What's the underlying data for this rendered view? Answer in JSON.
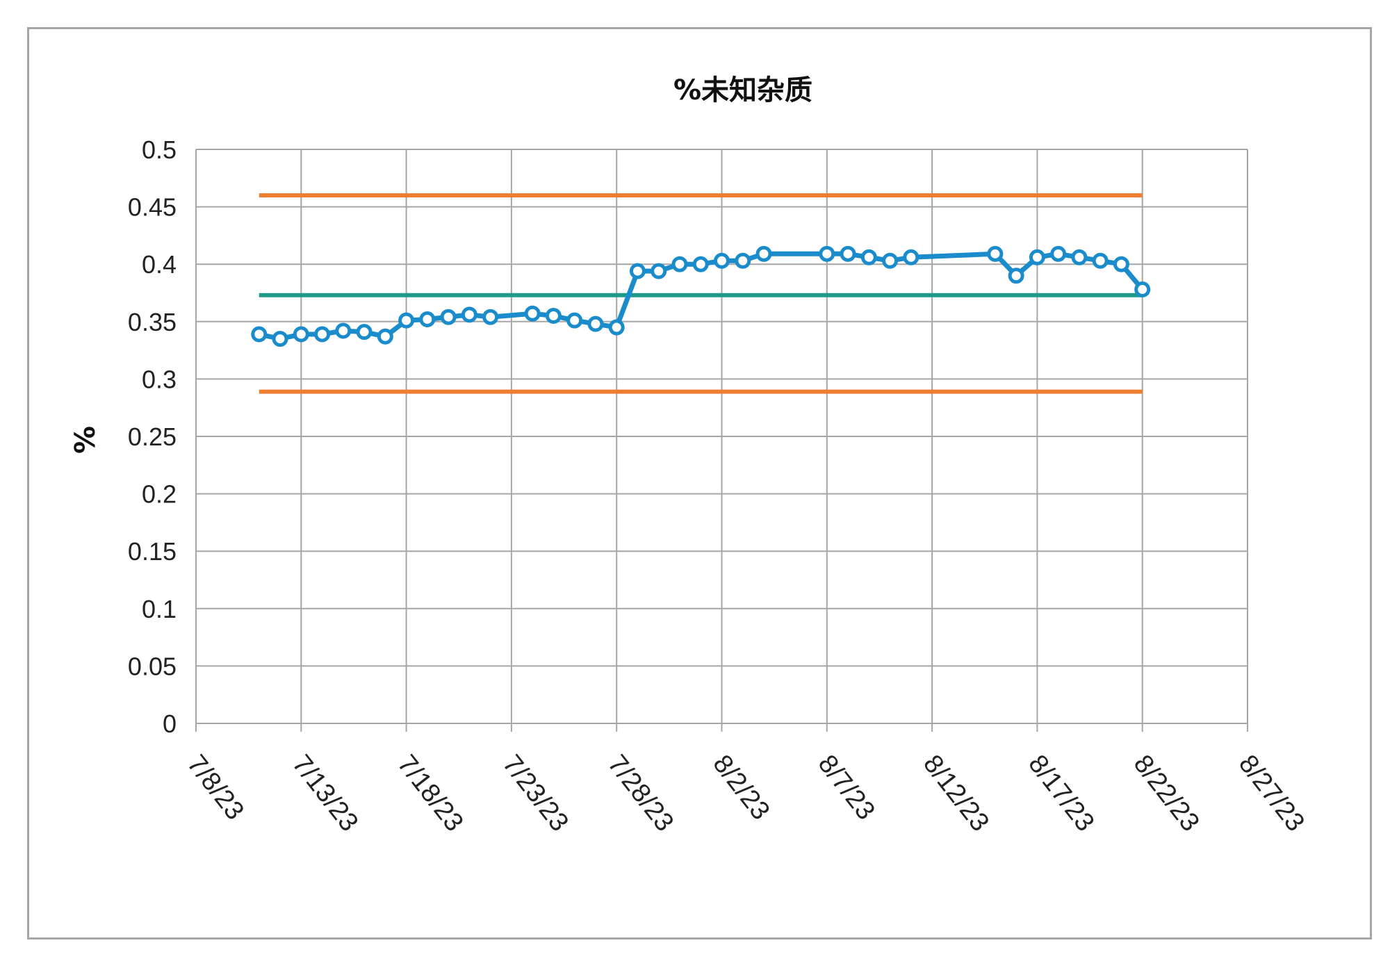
{
  "chart_data": {
    "type": "line",
    "title": "%未知杂质",
    "xlabel": "",
    "ylabel": "%",
    "x_ticks": [
      "7/8/23",
      "7/13/23",
      "7/18/23",
      "7/23/23",
      "7/28/23",
      "8/2/23",
      "8/7/23",
      "8/12/23",
      "8/17/23",
      "8/22/23",
      "8/27/23"
    ],
    "xlim": [
      "2023-07-08",
      "2023-08-27"
    ],
    "ylim": [
      0,
      0.5
    ],
    "y_ticks": [
      0,
      0.05,
      0.1,
      0.15,
      0.2,
      0.25,
      0.3,
      0.35,
      0.4,
      0.45,
      0.5
    ],
    "grid": true,
    "legend": "none",
    "series": [
      {
        "color": "#1a8ccc",
        "marker": "circle-open",
        "points": [
          {
            "x": "2023-07-11",
            "y": 0.339
          },
          {
            "x": "2023-07-12",
            "y": 0.335
          },
          {
            "x": "2023-07-13",
            "y": 0.339
          },
          {
            "x": "2023-07-14",
            "y": 0.339
          },
          {
            "x": "2023-07-15",
            "y": 0.342
          },
          {
            "x": "2023-07-16",
            "y": 0.341
          },
          {
            "x": "2023-07-17",
            "y": 0.337
          },
          {
            "x": "2023-07-18",
            "y": 0.351
          },
          {
            "x": "2023-07-19",
            "y": 0.352
          },
          {
            "x": "2023-07-20",
            "y": 0.354
          },
          {
            "x": "2023-07-21",
            "y": 0.356
          },
          {
            "x": "2023-07-22",
            "y": 0.354
          },
          {
            "x": "2023-07-24",
            "y": 0.357
          },
          {
            "x": "2023-07-25",
            "y": 0.355
          },
          {
            "x": "2023-07-26",
            "y": 0.351
          },
          {
            "x": "2023-07-27",
            "y": 0.348
          },
          {
            "x": "2023-07-28",
            "y": 0.345
          },
          {
            "x": "2023-07-29",
            "y": 0.394
          },
          {
            "x": "2023-07-30",
            "y": 0.394
          },
          {
            "x": "2023-07-31",
            "y": 0.4
          },
          {
            "x": "2023-08-01",
            "y": 0.4
          },
          {
            "x": "2023-08-02",
            "y": 0.403
          },
          {
            "x": "2023-08-03",
            "y": 0.403
          },
          {
            "x": "2023-08-04",
            "y": 0.409
          },
          {
            "x": "2023-08-07",
            "y": 0.409
          },
          {
            "x": "2023-08-08",
            "y": 0.409
          },
          {
            "x": "2023-08-09",
            "y": 0.406
          },
          {
            "x": "2023-08-10",
            "y": 0.403
          },
          {
            "x": "2023-08-11",
            "y": 0.406
          },
          {
            "x": "2023-08-15",
            "y": 0.409
          },
          {
            "x": "2023-08-16",
            "y": 0.39
          },
          {
            "x": "2023-08-17",
            "y": 0.406
          },
          {
            "x": "2023-08-18",
            "y": 0.409
          },
          {
            "x": "2023-08-19",
            "y": 0.406
          },
          {
            "x": "2023-08-20",
            "y": 0.403
          },
          {
            "x": "2023-08-21",
            "y": 0.4
          },
          {
            "x": "2023-08-22",
            "y": 0.378
          }
        ]
      }
    ],
    "reference_lines": [
      {
        "role": "upper-limit",
        "y": 0.46,
        "x_from": "2023-07-11",
        "x_to": "2023-08-22",
        "color": "#ed7d31"
      },
      {
        "role": "mean",
        "y": 0.373,
        "x_from": "2023-07-11",
        "x_to": "2023-08-22",
        "color": "#1e9a8a"
      },
      {
        "role": "lower-limit",
        "y": 0.289,
        "x_from": "2023-07-11",
        "x_to": "2023-08-22",
        "color": "#ed7d31"
      }
    ]
  }
}
